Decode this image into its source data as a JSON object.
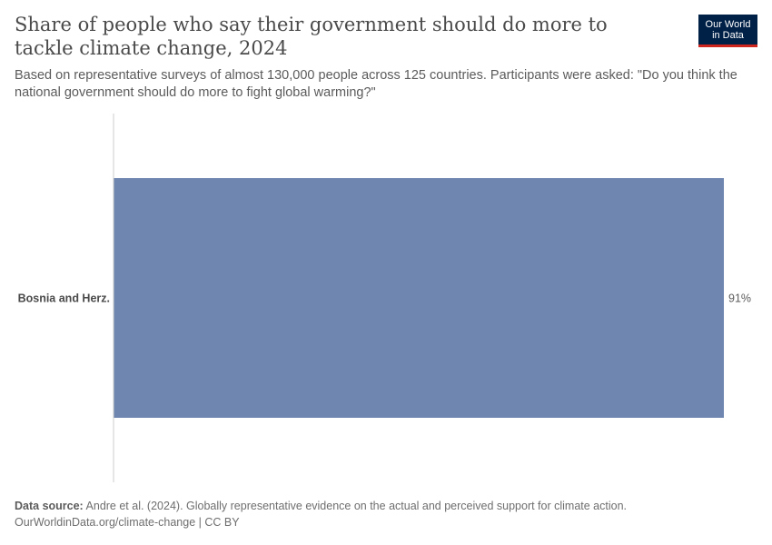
{
  "header": {
    "title": "Share of people who say their government should do more to tackle climate change, 2024",
    "subtitle": "Based on representative surveys of almost 130,000 people across 125 countries. Participants were asked: \"Do you think the national government should do more to fight global warming?\"",
    "logo_line1": "Our World",
    "logo_line2": "in Data"
  },
  "chart_data": {
    "type": "bar",
    "orientation": "horizontal",
    "categories": [
      "Bosnia and Herz."
    ],
    "values": [
      91
    ],
    "value_labels": [
      "91%"
    ],
    "unit": "%",
    "xlim": [
      0,
      91
    ],
    "bar_color": "#6f87b0",
    "axis_color": "#cccccc"
  },
  "footer": {
    "source_label": "Data source:",
    "source_text": "Andre et al. (2024). Globally representative evidence on the actual and perceived support for climate action.",
    "url_text": "OurWorldinData.org/climate-change | CC BY"
  },
  "colors": {
    "logo_bg": "#002147",
    "logo_accent": "#ce261e",
    "title": "#4a4a4a",
    "text": "#5b5b5b"
  }
}
